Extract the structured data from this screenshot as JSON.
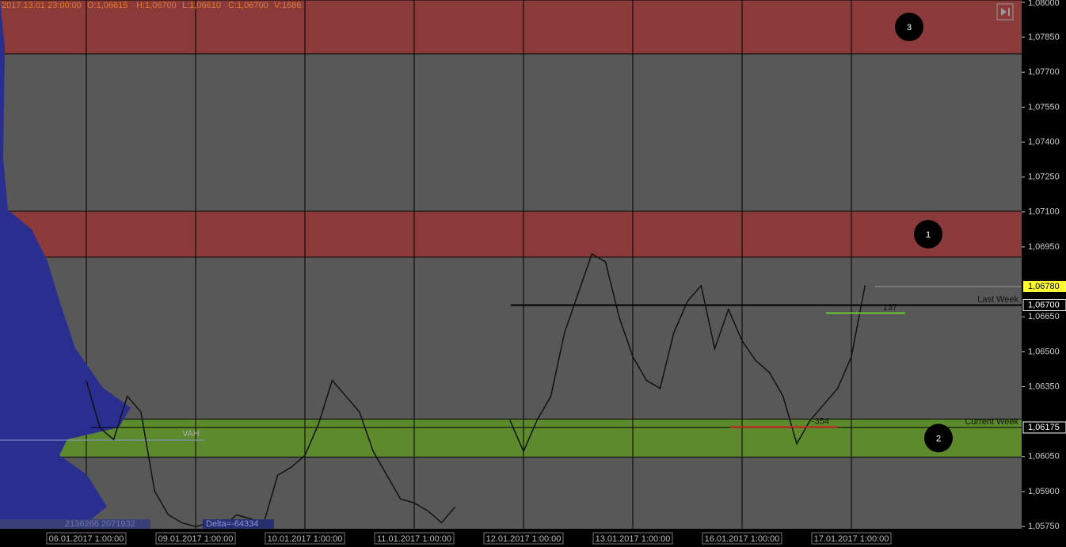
{
  "chart_data": {
    "type": "line",
    "header": {
      "time": "2017.13.01 23:00:00",
      "open": "O:1,06615",
      "high": "H:1,06700",
      "low": "L:1,06610",
      "close": "C:1,06700",
      "volume": "V:1686"
    },
    "footer": {
      "volumes": "2136266 2071932",
      "delta": "Delta=-64334"
    },
    "profile_label": "VAH",
    "categories": [
      null,
      null,
      null,
      null,
      "06.01.2017 1:00:00",
      null,
      null,
      null,
      null,
      null,
      null,
      null,
      "09.01.2017 1:00:00",
      null,
      null,
      null,
      null,
      null,
      null,
      null,
      "10.01.2017 1:00:00",
      null,
      null,
      null,
      null,
      null,
      null,
      null,
      "11.01.2017 1:00:00",
      null,
      null,
      null,
      null,
      null,
      null,
      null,
      "12.01.2017 1:00:00",
      null,
      null,
      null,
      null,
      null,
      null,
      null,
      "13.01.2017 1:00:00",
      null,
      null,
      null,
      null,
      null,
      null,
      null,
      "16.01.2017 1:00:00",
      null,
      null,
      null,
      null,
      null,
      null,
      null,
      "17.01.2017 1:00:00",
      null
    ],
    "series": [
      {
        "color": "#111111",
        "values": [
          null,
          null,
          null,
          null,
          1.06377,
          1.06173,
          1.06123,
          1.06309,
          1.06241,
          1.05902,
          1.058,
          1.05766,
          1.05749,
          1.05766,
          1.05749,
          1.058,
          1.05783,
          1.05766,
          1.0597,
          1.06004,
          1.06055,
          1.0619,
          1.06377,
          1.06309,
          1.06241,
          1.06072,
          1.0597,
          1.05868,
          1.05851,
          1.05817,
          1.05766,
          1.05834,
          null,
          null,
          null,
          1.06207,
          1.06072,
          1.06207,
          1.06309,
          1.06581,
          1.0675,
          1.0692,
          1.06886,
          1.06649,
          1.06479,
          1.06377,
          1.06343,
          1.06581,
          1.06716,
          1.06784,
          1.06513,
          1.06682,
          1.06547,
          1.06462,
          1.06411,
          1.06309,
          1.06105,
          1.06207,
          1.06275,
          1.06343,
          1.06479,
          1.06784
        ]
      }
    ],
    "ylim": [
      1.0574,
      1.0801
    ],
    "yticks": [
      {
        "value": 1.08,
        "label": "1,08000"
      },
      {
        "value": 1.0785,
        "label": "1,07850"
      },
      {
        "value": 1.077,
        "label": "1,07700"
      },
      {
        "value": 1.0755,
        "label": "1,07550"
      },
      {
        "value": 1.074,
        "label": "1,07400"
      },
      {
        "value": 1.0725,
        "label": "1,07250"
      },
      {
        "value": 1.071,
        "label": "1,07100"
      },
      {
        "value": 1.0695,
        "label": "1,06950"
      },
      {
        "value": 1.0665,
        "label": "1,06650"
      },
      {
        "value": 1.065,
        "label": "1,06500"
      },
      {
        "value": 1.0635,
        "label": "1,06350"
      },
      {
        "value": 1.0605,
        "label": "1,06050"
      },
      {
        "value": 1.059,
        "label": "1,05900"
      },
      {
        "value": 1.0575,
        "label": "1,05750"
      }
    ],
    "zones": [
      {
        "label": "3",
        "from": 1.07779,
        "to": 1.0801,
        "color": "#8b3a3a"
      },
      {
        "label": "1",
        "from": 1.06906,
        "to": 1.07103,
        "color": "#8b3a3a"
      },
      {
        "label": "2",
        "from": 1.06048,
        "to": 1.06211,
        "color": "#5e8a2e"
      }
    ],
    "levels": [
      {
        "name": "Last Week",
        "value": 1.067,
        "label": "1,06700",
        "color": "#000000"
      },
      {
        "name": "Current Week",
        "value": 1.06175,
        "label": "1,06175",
        "color": "#000000"
      }
    ],
    "current_price": {
      "value": 1.0678,
      "label": "1,06780",
      "color": "#ffff33"
    },
    "deltas": [
      {
        "label": "137",
        "value": 1.06666,
        "color": "#66cc33"
      },
      {
        "label": "-354",
        "value": 1.06177,
        "color": "#cc2222"
      }
    ]
  }
}
